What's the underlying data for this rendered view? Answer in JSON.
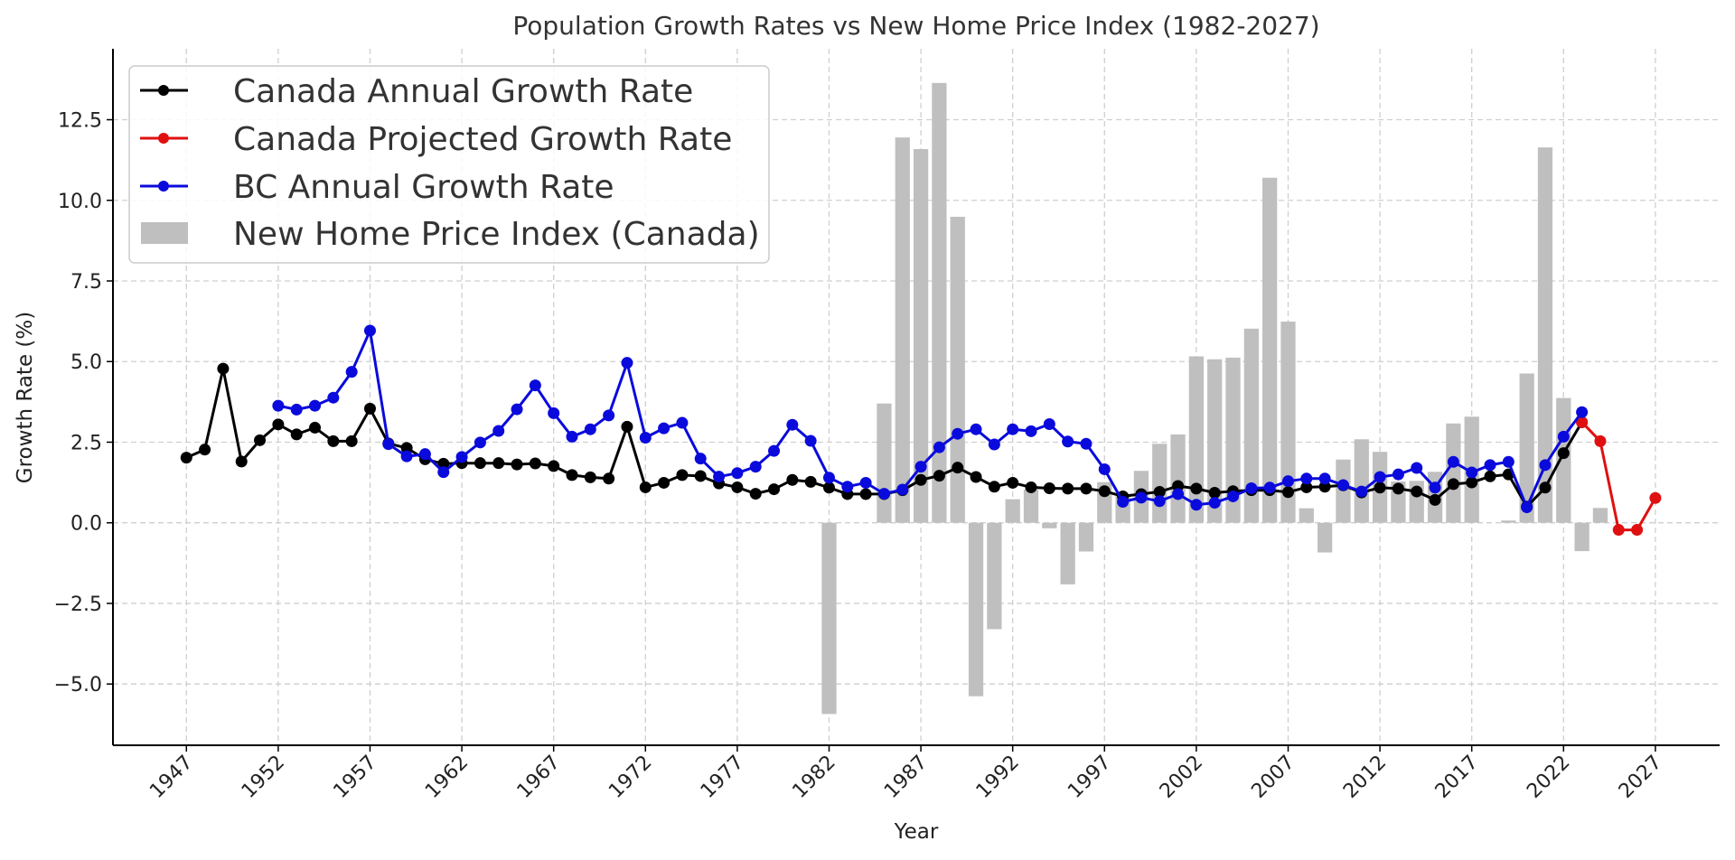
{
  "chart_data": {
    "type": "line",
    "title": "Population Growth Rates vs New Home Price Index (1982-2027)",
    "xlabel": "Year",
    "ylabel": "Growth Rate (%)",
    "xlim": [
      1943,
      2030.5
    ],
    "ylim": [
      -6.9,
      14.7
    ],
    "grid": true,
    "legend_position": "top-left",
    "x_ticks": [
      1947,
      1952,
      1957,
      1962,
      1967,
      1972,
      1977,
      1982,
      1987,
      1992,
      1997,
      2002,
      2007,
      2012,
      2017,
      2022,
      2027
    ],
    "y_ticks": [
      -5.0,
      -2.5,
      0.0,
      2.5,
      5.0,
      7.5,
      10.0,
      12.5
    ],
    "y_tick_labels": [
      "−5.0",
      "−2.5",
      "0.0",
      "2.5",
      "5.0",
      "7.5",
      "10.0",
      "12.5"
    ],
    "series": [
      {
        "name": "New Home Price Index (Canada)",
        "kind": "bar",
        "color": "#bfbfbf",
        "x": [
          1982,
          1985,
          1986,
          1987,
          1988,
          1989,
          1990,
          1991,
          1992,
          1993,
          1994,
          1995,
          1996,
          1997,
          1998,
          1999,
          2000,
          2001,
          2002,
          2003,
          2004,
          2005,
          2006,
          2007,
          2008,
          2009,
          2010,
          2011,
          2012,
          2013,
          2014,
          2015,
          2016,
          2017,
          2019,
          2020,
          2021,
          2022,
          2023,
          2024
        ],
        "values": [
          -5.93,
          3.7,
          11.95,
          11.59,
          13.64,
          9.49,
          -5.38,
          -3.3,
          0.73,
          1.03,
          -0.17,
          -1.91,
          -0.89,
          1.26,
          0.9,
          1.61,
          2.45,
          2.74,
          5.16,
          5.07,
          5.12,
          6.02,
          10.7,
          6.24,
          0.45,
          -0.92,
          1.96,
          2.59,
          2.2,
          1.28,
          1.3,
          1.58,
          3.08,
          3.29,
          0.07,
          4.63,
          11.64,
          3.87,
          -0.88,
          0.46
        ]
      },
      {
        "name": "Canada Annual Growth Rate",
        "kind": "line",
        "color": "#000000",
        "x": [
          1947,
          1948,
          1949,
          1950,
          1951,
          1952,
          1953,
          1954,
          1955,
          1956,
          1957,
          1958,
          1959,
          1960,
          1961,
          1962,
          1963,
          1964,
          1965,
          1966,
          1967,
          1968,
          1969,
          1970,
          1971,
          1972,
          1973,
          1974,
          1975,
          1976,
          1977,
          1978,
          1979,
          1980,
          1981,
          1982,
          1983,
          1984,
          1985,
          1986,
          1987,
          1988,
          1989,
          1990,
          1991,
          1992,
          1993,
          1994,
          1995,
          1996,
          1997,
          1998,
          1999,
          2000,
          2001,
          2002,
          2003,
          2004,
          2005,
          2006,
          2007,
          2008,
          2009,
          2010,
          2011,
          2012,
          2013,
          2014,
          2015,
          2016,
          2017,
          2018,
          2019,
          2020,
          2021,
          2022,
          2023
        ],
        "values": [
          2.02,
          2.27,
          4.78,
          1.9,
          2.56,
          3.05,
          2.74,
          2.95,
          2.53,
          2.53,
          3.54,
          2.46,
          2.32,
          1.97,
          1.83,
          1.85,
          1.85,
          1.85,
          1.81,
          1.84,
          1.76,
          1.48,
          1.41,
          1.37,
          2.98,
          1.1,
          1.24,
          1.48,
          1.45,
          1.22,
          1.1,
          0.9,
          1.04,
          1.33,
          1.27,
          1.09,
          0.89,
          0.89,
          0.89,
          1.01,
          1.33,
          1.46,
          1.71,
          1.42,
          1.12,
          1.24,
          1.1,
          1.07,
          1.06,
          1.06,
          0.98,
          0.82,
          0.89,
          0.96,
          1.14,
          1.06,
          0.93,
          0.98,
          1.01,
          1.01,
          0.95,
          1.1,
          1.12,
          1.16,
          0.94,
          1.09,
          1.06,
          0.97,
          0.71,
          1.2,
          1.25,
          1.44,
          1.5,
          0.5,
          1.09,
          2.16,
          3.12
        ]
      },
      {
        "name": "Canada Projected Growth Rate",
        "kind": "line",
        "color": "#e01010",
        "x": [
          2023,
          2024,
          2025,
          2026,
          2027
        ],
        "values": [
          3.12,
          2.53,
          -0.22,
          -0.22,
          0.77
        ]
      },
      {
        "name": "BC Annual Growth Rate",
        "kind": "line",
        "color": "#0a0adc",
        "x": [
          1952,
          1953,
          1954,
          1955,
          1956,
          1957,
          1958,
          1959,
          1960,
          1961,
          1962,
          1963,
          1964,
          1965,
          1966,
          1967,
          1968,
          1969,
          1970,
          1971,
          1972,
          1973,
          1974,
          1975,
          1976,
          1977,
          1978,
          1979,
          1980,
          1981,
          1982,
          1983,
          1984,
          1985,
          1986,
          1987,
          1988,
          1989,
          1990,
          1991,
          1992,
          1993,
          1994,
          1995,
          1996,
          1997,
          1998,
          1999,
          2000,
          2001,
          2002,
          2003,
          2004,
          2005,
          2006,
          2007,
          2008,
          2009,
          2010,
          2011,
          2012,
          2013,
          2014,
          2015,
          2016,
          2017,
          2018,
          2019,
          2020,
          2021,
          2022,
          2023
        ],
        "values": [
          3.63,
          3.51,
          3.63,
          3.88,
          4.68,
          5.96,
          2.44,
          2.06,
          2.13,
          1.57,
          2.04,
          2.49,
          2.85,
          3.52,
          4.26,
          3.4,
          2.67,
          2.9,
          3.33,
          4.96,
          2.64,
          2.93,
          3.1,
          1.99,
          1.43,
          1.54,
          1.74,
          2.23,
          3.04,
          2.54,
          1.4,
          1.12,
          1.24,
          0.9,
          1.03,
          1.74,
          2.34,
          2.76,
          2.9,
          2.43,
          2.9,
          2.84,
          3.06,
          2.52,
          2.45,
          1.66,
          0.65,
          0.78,
          0.67,
          0.89,
          0.56,
          0.62,
          0.82,
          1.07,
          1.09,
          1.29,
          1.37,
          1.37,
          1.17,
          0.97,
          1.42,
          1.5,
          1.7,
          1.09,
          1.89,
          1.56,
          1.79,
          1.89,
          0.48,
          1.79,
          2.67,
          3.43
        ]
      }
    ],
    "legend": [
      {
        "label": "Canada Annual Growth Rate",
        "color": "#000000",
        "kind": "line"
      },
      {
        "label": "Canada Projected Growth Rate",
        "color": "#e01010",
        "kind": "line"
      },
      {
        "label": "BC Annual Growth Rate",
        "color": "#0a0adc",
        "kind": "line"
      },
      {
        "label": "New Home Price Index (Canada)",
        "color": "#bfbfbf",
        "kind": "bar"
      }
    ]
  }
}
